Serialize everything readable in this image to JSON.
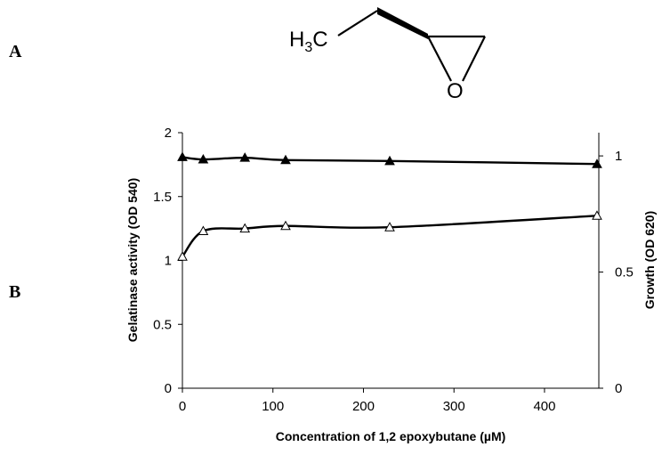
{
  "panels": {
    "a": "A",
    "b": "B"
  },
  "molecule": {
    "group": "H",
    "subscript": "3",
    "carbon": "C",
    "oxygen": "O"
  },
  "chart_data": {
    "type": "line",
    "xlabel": "Concentration of 1,2 epoxybutane (µM)",
    "ylabel": "Gelatinase activity (OD 540)",
    "y2label": "Growth (OD 620)",
    "xlim": [
      0,
      460
    ],
    "ylim": [
      0,
      2
    ],
    "y2lim": [
      0,
      1.1
    ],
    "xticks": [
      "0",
      "100",
      "200",
      "300",
      "400"
    ],
    "yticks": [
      "0",
      "0.5",
      "1",
      "1.5",
      "2"
    ],
    "y2ticks": [
      "0",
      "0.5",
      "1"
    ],
    "grid": false,
    "series": [
      {
        "marker": "filled-triangle",
        "axis": "right",
        "x": [
          0,
          23,
          69,
          114,
          229,
          458
        ],
        "y": [
          0.995,
          0.985,
          0.992,
          0.982,
          0.978,
          0.965
        ]
      },
      {
        "marker": "open-triangle",
        "axis": "left",
        "x": [
          0,
          23,
          69,
          114,
          229,
          458
        ],
        "y": [
          1.03,
          1.23,
          1.25,
          1.27,
          1.26,
          1.35
        ]
      }
    ]
  }
}
